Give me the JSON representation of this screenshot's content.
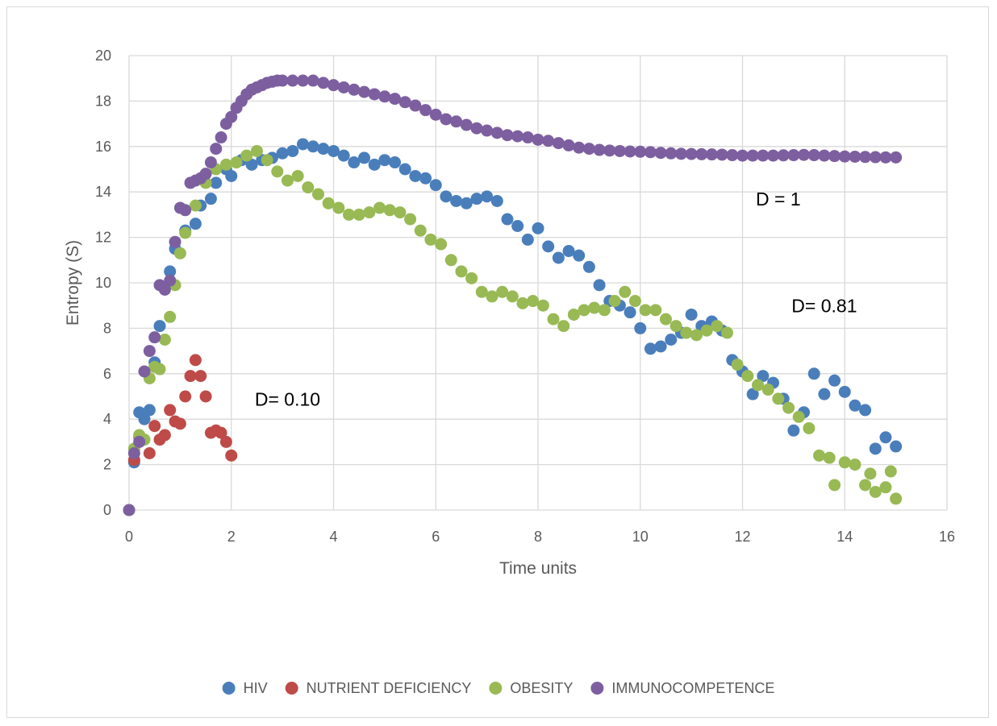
{
  "chart_data": {
    "type": "scatter",
    "title": "",
    "xlabel": "Time units",
    "ylabel": "Entropy (S)",
    "xlim": [
      0,
      16
    ],
    "ylim": [
      0,
      20
    ],
    "xticks": [
      0,
      2,
      4,
      6,
      8,
      10,
      12,
      14,
      16
    ],
    "yticks": [
      0,
      2,
      4,
      6,
      8,
      10,
      12,
      14,
      16,
      18,
      20
    ],
    "grid": true,
    "legend_position": "bottom",
    "annotations": [
      {
        "text": "D = 1",
        "x": 12.7,
        "y": 13.4
      },
      {
        "text": "D= 0.81",
        "x": 13.6,
        "y": 8.7
      },
      {
        "text": "D= 0.10",
        "x": 3.1,
        "y": 4.6
      }
    ],
    "series": [
      {
        "name": "HIV",
        "color": "#4a7ebb",
        "points": [
          [
            0,
            0
          ],
          [
            0.1,
            2.1
          ],
          [
            0.2,
            4.3
          ],
          [
            0.3,
            4.0
          ],
          [
            0.4,
            4.4
          ],
          [
            0.5,
            6.5
          ],
          [
            0.6,
            8.1
          ],
          [
            0.8,
            10.5
          ],
          [
            0.9,
            11.5
          ],
          [
            1.1,
            12.3
          ],
          [
            1.3,
            12.6
          ],
          [
            1.4,
            13.4
          ],
          [
            1.6,
            13.7
          ],
          [
            1.7,
            14.4
          ],
          [
            1.9,
            15.0
          ],
          [
            2.0,
            14.7
          ],
          [
            2.2,
            15.4
          ],
          [
            2.4,
            15.2
          ],
          [
            2.6,
            15.4
          ],
          [
            2.8,
            15.5
          ],
          [
            3.0,
            15.7
          ],
          [
            3.2,
            15.8
          ],
          [
            3.4,
            16.1
          ],
          [
            3.6,
            16.0
          ],
          [
            3.8,
            15.9
          ],
          [
            4.0,
            15.8
          ],
          [
            4.2,
            15.6
          ],
          [
            4.4,
            15.3
          ],
          [
            4.6,
            15.5
          ],
          [
            4.8,
            15.2
          ],
          [
            5.0,
            15.4
          ],
          [
            5.2,
            15.3
          ],
          [
            5.4,
            15.0
          ],
          [
            5.6,
            14.7
          ],
          [
            5.8,
            14.6
          ],
          [
            6.0,
            14.3
          ],
          [
            6.2,
            13.8
          ],
          [
            6.4,
            13.6
          ],
          [
            6.6,
            13.5
          ],
          [
            6.8,
            13.7
          ],
          [
            7.0,
            13.8
          ],
          [
            7.2,
            13.6
          ],
          [
            7.4,
            12.8
          ],
          [
            7.6,
            12.5
          ],
          [
            7.8,
            11.9
          ],
          [
            8.0,
            12.4
          ],
          [
            8.2,
            11.6
          ],
          [
            8.4,
            11.1
          ],
          [
            8.6,
            11.4
          ],
          [
            8.8,
            11.2
          ],
          [
            9.0,
            10.7
          ],
          [
            9.2,
            9.9
          ],
          [
            9.4,
            9.2
          ],
          [
            9.6,
            9.0
          ],
          [
            9.8,
            8.7
          ],
          [
            10.0,
            8.0
          ],
          [
            10.2,
            7.1
          ],
          [
            10.4,
            7.2
          ],
          [
            10.6,
            7.5
          ],
          [
            10.8,
            7.8
          ],
          [
            11.0,
            8.6
          ],
          [
            11.2,
            8.1
          ],
          [
            11.4,
            8.3
          ],
          [
            11.6,
            7.9
          ],
          [
            11.8,
            6.6
          ],
          [
            12.0,
            6.1
          ],
          [
            12.2,
            5.1
          ],
          [
            12.4,
            5.9
          ],
          [
            12.6,
            5.6
          ],
          [
            12.8,
            4.9
          ],
          [
            13.0,
            3.5
          ],
          [
            13.2,
            4.3
          ],
          [
            13.4,
            6.0
          ],
          [
            13.6,
            5.1
          ],
          [
            13.8,
            5.7
          ],
          [
            14.0,
            5.2
          ],
          [
            14.2,
            4.6
          ],
          [
            14.4,
            4.4
          ],
          [
            14.6,
            2.7
          ],
          [
            14.8,
            3.2
          ],
          [
            15.0,
            2.8
          ]
        ]
      },
      {
        "name": "NUTRIENT DEFICIENCY",
        "color": "#be4b48",
        "points": [
          [
            0.1,
            2.2
          ],
          [
            0.2,
            3.2
          ],
          [
            0.4,
            2.5
          ],
          [
            0.5,
            3.7
          ],
          [
            0.6,
            3.1
          ],
          [
            0.7,
            3.3
          ],
          [
            0.8,
            4.4
          ],
          [
            0.9,
            3.9
          ],
          [
            1.0,
            3.8
          ],
          [
            1.1,
            5.0
          ],
          [
            1.2,
            5.9
          ],
          [
            1.3,
            6.6
          ],
          [
            1.4,
            5.9
          ],
          [
            1.5,
            5.0
          ],
          [
            1.6,
            3.4
          ],
          [
            1.7,
            3.5
          ],
          [
            1.8,
            3.4
          ],
          [
            1.9,
            3.0
          ],
          [
            2.0,
            2.4
          ]
        ]
      },
      {
        "name": "OBESITY",
        "color": "#98b954",
        "points": [
          [
            0,
            0
          ],
          [
            0.1,
            2.7
          ],
          [
            0.2,
            3.3
          ],
          [
            0.3,
            3.1
          ],
          [
            0.4,
            5.8
          ],
          [
            0.5,
            6.3
          ],
          [
            0.6,
            6.2
          ],
          [
            0.7,
            7.5
          ],
          [
            0.8,
            8.5
          ],
          [
            0.9,
            9.9
          ],
          [
            1.0,
            11.3
          ],
          [
            1.1,
            12.2
          ],
          [
            1.3,
            13.4
          ],
          [
            1.5,
            14.4
          ],
          [
            1.7,
            15.0
          ],
          [
            1.9,
            15.2
          ],
          [
            2.1,
            15.3
          ],
          [
            2.3,
            15.6
          ],
          [
            2.5,
            15.8
          ],
          [
            2.7,
            15.4
          ],
          [
            2.9,
            14.9
          ],
          [
            3.1,
            14.5
          ],
          [
            3.3,
            14.7
          ],
          [
            3.5,
            14.2
          ],
          [
            3.7,
            13.9
          ],
          [
            3.9,
            13.5
          ],
          [
            4.1,
            13.3
          ],
          [
            4.3,
            13.0
          ],
          [
            4.5,
            13.0
          ],
          [
            4.7,
            13.1
          ],
          [
            4.9,
            13.3
          ],
          [
            5.1,
            13.2
          ],
          [
            5.3,
            13.1
          ],
          [
            5.5,
            12.8
          ],
          [
            5.7,
            12.3
          ],
          [
            5.9,
            11.9
          ],
          [
            6.1,
            11.7
          ],
          [
            6.3,
            11.0
          ],
          [
            6.5,
            10.5
          ],
          [
            6.7,
            10.2
          ],
          [
            6.9,
            9.6
          ],
          [
            7.1,
            9.4
          ],
          [
            7.3,
            9.6
          ],
          [
            7.5,
            9.4
          ],
          [
            7.7,
            9.1
          ],
          [
            7.9,
            9.2
          ],
          [
            8.1,
            9.0
          ],
          [
            8.3,
            8.4
          ],
          [
            8.5,
            8.1
          ],
          [
            8.7,
            8.6
          ],
          [
            8.9,
            8.8
          ],
          [
            9.1,
            8.9
          ],
          [
            9.3,
            8.8
          ],
          [
            9.5,
            9.2
          ],
          [
            9.7,
            9.6
          ],
          [
            9.9,
            9.2
          ],
          [
            10.1,
            8.8
          ],
          [
            10.3,
            8.8
          ],
          [
            10.5,
            8.4
          ],
          [
            10.7,
            8.1
          ],
          [
            10.9,
            7.8
          ],
          [
            11.1,
            7.7
          ],
          [
            11.3,
            7.9
          ],
          [
            11.5,
            8.1
          ],
          [
            11.7,
            7.8
          ],
          [
            11.9,
            6.4
          ],
          [
            12.1,
            5.9
          ],
          [
            12.3,
            5.5
          ],
          [
            12.5,
            5.3
          ],
          [
            12.7,
            4.9
          ],
          [
            12.9,
            4.5
          ],
          [
            13.1,
            4.1
          ],
          [
            13.3,
            3.6
          ],
          [
            13.5,
            2.4
          ],
          [
            13.7,
            2.3
          ],
          [
            13.8,
            1.1
          ],
          [
            14.0,
            2.1
          ],
          [
            14.2,
            2.0
          ],
          [
            14.4,
            1.1
          ],
          [
            14.5,
            1.6
          ],
          [
            14.6,
            0.8
          ],
          [
            14.8,
            1.0
          ],
          [
            14.9,
            1.7
          ],
          [
            15.0,
            0.5
          ]
        ]
      },
      {
        "name": "IMMUNOCOMPETENCE",
        "color": "#7d5fa0",
        "points": [
          [
            0,
            0
          ],
          [
            0.1,
            2.5
          ],
          [
            0.2,
            3.0
          ],
          [
            0.3,
            6.1
          ],
          [
            0.4,
            7.0
          ],
          [
            0.5,
            7.6
          ],
          [
            0.6,
            9.9
          ],
          [
            0.7,
            9.7
          ],
          [
            0.8,
            10.1
          ],
          [
            0.9,
            11.8
          ],
          [
            1.0,
            13.3
          ],
          [
            1.1,
            13.2
          ],
          [
            1.2,
            14.4
          ],
          [
            1.3,
            14.5
          ],
          [
            1.4,
            14.6
          ],
          [
            1.5,
            14.8
          ],
          [
            1.6,
            15.3
          ],
          [
            1.7,
            15.9
          ],
          [
            1.8,
            16.4
          ],
          [
            1.9,
            17.0
          ],
          [
            2.0,
            17.3
          ],
          [
            2.1,
            17.7
          ],
          [
            2.2,
            18.0
          ],
          [
            2.3,
            18.3
          ],
          [
            2.4,
            18.5
          ],
          [
            2.5,
            18.6
          ],
          [
            2.6,
            18.7
          ],
          [
            2.7,
            18.8
          ],
          [
            2.8,
            18.85
          ],
          [
            2.9,
            18.9
          ],
          [
            3.0,
            18.9
          ],
          [
            3.2,
            18.9
          ],
          [
            3.4,
            18.9
          ],
          [
            3.6,
            18.9
          ],
          [
            3.8,
            18.8
          ],
          [
            4.0,
            18.7
          ],
          [
            4.2,
            18.6
          ],
          [
            4.4,
            18.5
          ],
          [
            4.6,
            18.4
          ],
          [
            4.8,
            18.3
          ],
          [
            5.0,
            18.2
          ],
          [
            5.2,
            18.1
          ],
          [
            5.4,
            17.95
          ],
          [
            5.6,
            17.8
          ],
          [
            5.8,
            17.6
          ],
          [
            6.0,
            17.4
          ],
          [
            6.2,
            17.2
          ],
          [
            6.4,
            17.1
          ],
          [
            6.6,
            16.95
          ],
          [
            6.8,
            16.8
          ],
          [
            7.0,
            16.7
          ],
          [
            7.2,
            16.6
          ],
          [
            7.4,
            16.5
          ],
          [
            7.6,
            16.45
          ],
          [
            7.8,
            16.4
          ],
          [
            8.0,
            16.3
          ],
          [
            8.2,
            16.25
          ],
          [
            8.4,
            16.15
          ],
          [
            8.6,
            16.05
          ],
          [
            8.8,
            15.95
          ],
          [
            9.0,
            15.9
          ],
          [
            9.2,
            15.85
          ],
          [
            9.4,
            15.82
          ],
          [
            9.6,
            15.8
          ],
          [
            9.8,
            15.78
          ],
          [
            10.0,
            15.77
          ],
          [
            10.2,
            15.75
          ],
          [
            10.4,
            15.72
          ],
          [
            10.6,
            15.7
          ],
          [
            10.8,
            15.68
          ],
          [
            11.0,
            15.67
          ],
          [
            11.2,
            15.66
          ],
          [
            11.4,
            15.65
          ],
          [
            11.6,
            15.64
          ],
          [
            11.8,
            15.62
          ],
          [
            12.0,
            15.6
          ],
          [
            12.2,
            15.6
          ],
          [
            12.4,
            15.6
          ],
          [
            12.6,
            15.6
          ],
          [
            12.8,
            15.61
          ],
          [
            13.0,
            15.62
          ],
          [
            13.2,
            15.63
          ],
          [
            13.4,
            15.62
          ],
          [
            13.6,
            15.6
          ],
          [
            13.8,
            15.58
          ],
          [
            14.0,
            15.56
          ],
          [
            14.2,
            15.55
          ],
          [
            14.4,
            15.54
          ],
          [
            14.6,
            15.53
          ],
          [
            14.8,
            15.52
          ],
          [
            15.0,
            15.52
          ]
        ]
      }
    ]
  }
}
